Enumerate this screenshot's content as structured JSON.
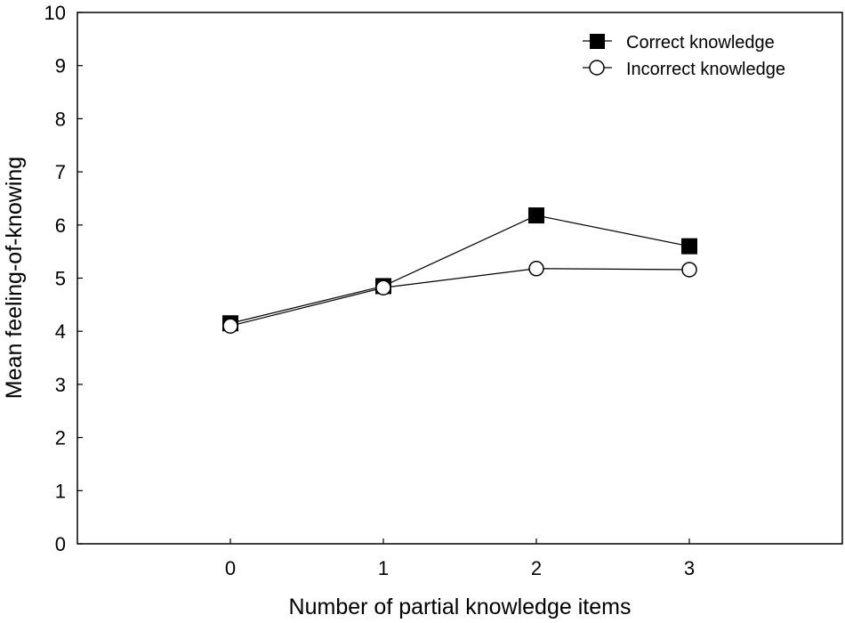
{
  "chart_data": {
    "type": "line",
    "title": "",
    "xlabel": "Number of partial knowledge items",
    "ylabel": "Mean feeling-of-knowing",
    "x": [
      0,
      1,
      2,
      3
    ],
    "x_ticks": [
      "0",
      "1",
      "2",
      "3"
    ],
    "xlim": [
      -1,
      4
    ],
    "ylim": [
      0,
      10
    ],
    "y_ticks": [
      "0",
      "1",
      "2",
      "3",
      "4",
      "5",
      "6",
      "7",
      "8",
      "9",
      "10"
    ],
    "grid": false,
    "legend_position": "top-right",
    "series": [
      {
        "name": "Correct knowledge",
        "marker": "filled-square",
        "color": "#000000",
        "values": [
          4.15,
          4.85,
          6.18,
          5.6
        ]
      },
      {
        "name": "Incorrect knowledge",
        "marker": "open-circle",
        "color": "#000000",
        "values": [
          4.1,
          4.82,
          5.18,
          5.16
        ]
      }
    ]
  }
}
